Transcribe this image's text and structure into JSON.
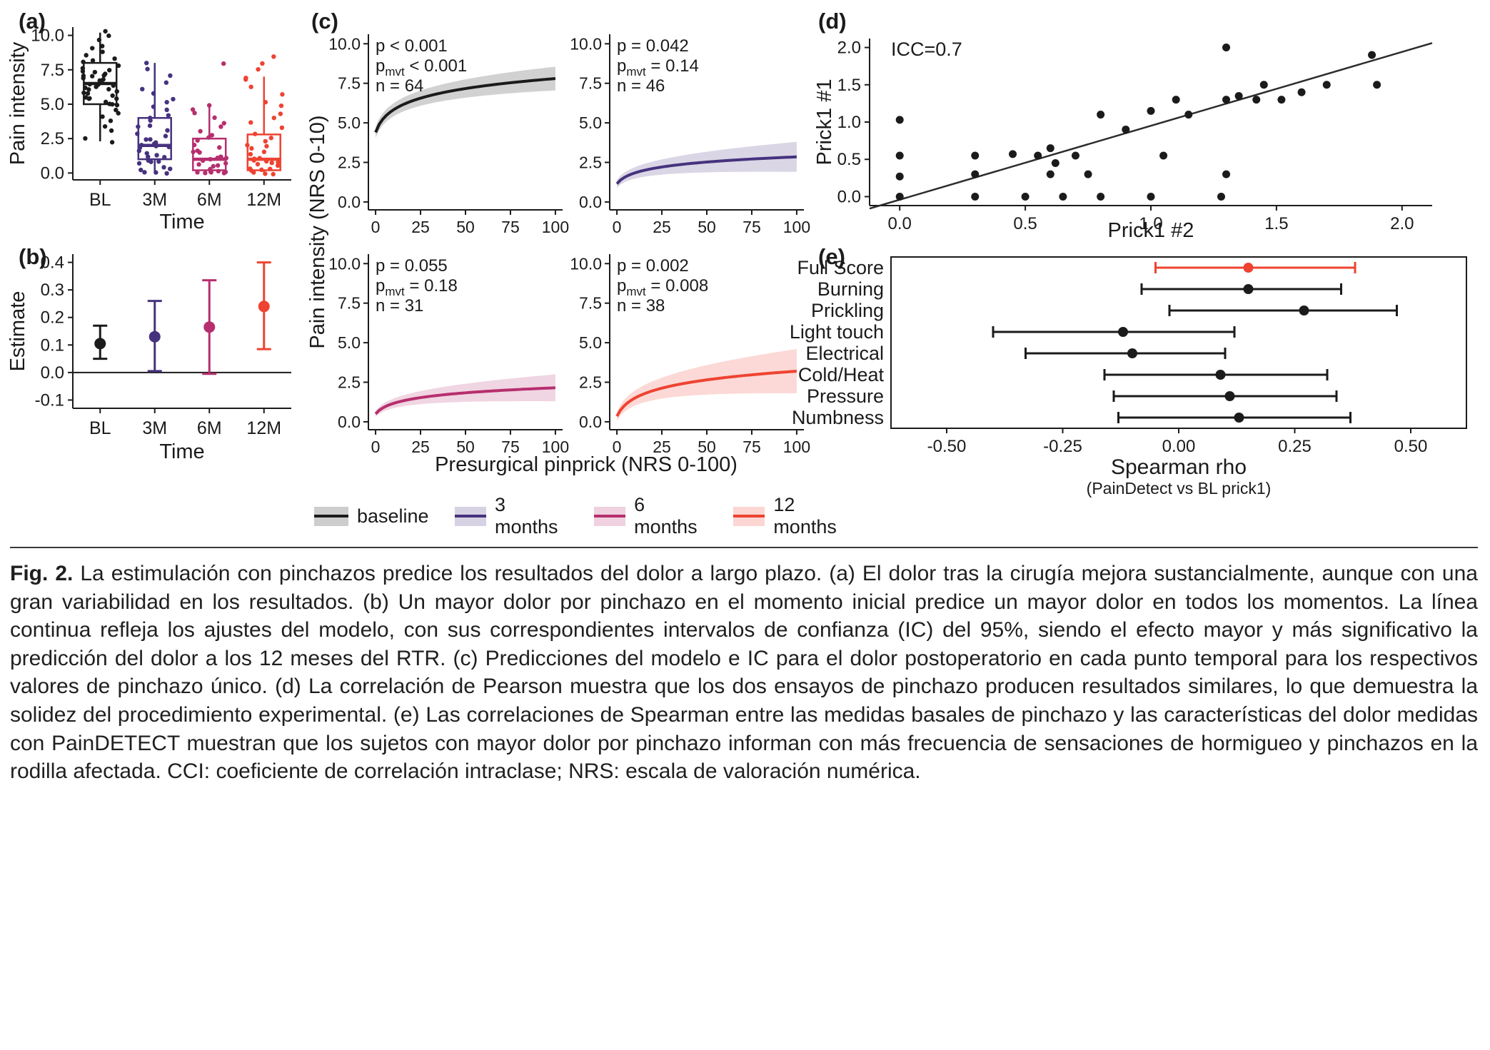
{
  "colors": {
    "baseline": "#1b1b1b",
    "months3": "#46327e",
    "months6": "#b62f6e",
    "months12": "#ee4331"
  },
  "figure": {
    "panel_labels": {
      "a": "(a)",
      "b": "(b)",
      "c": "(c)",
      "d": "(d)",
      "e": "(e)"
    }
  },
  "legend": {
    "items": [
      {
        "label": "baseline",
        "color_key": "baseline"
      },
      {
        "label": "3 months",
        "color_key": "months3"
      },
      {
        "label": "6 months",
        "color_key": "months6"
      },
      {
        "label": "12 months",
        "color_key": "months12"
      }
    ]
  },
  "chart_data": [
    {
      "id": "a",
      "type": "box",
      "panel_label": "(a)",
      "xlabel": "Time",
      "ylabel": "Pain intensity",
      "categories": [
        "BL",
        "3M",
        "6M",
        "12M"
      ],
      "yticks": [
        "0.0",
        "2.5",
        "5.0",
        "7.5",
        "10.0"
      ],
      "ylim": [
        -0.5,
        10.6
      ],
      "series": [
        {
          "name": "BL",
          "color_key": "baseline",
          "whisker_low": 2.3,
          "q1": 5.0,
          "median": 6.5,
          "q3": 8.0,
          "whisker_high": 10.2,
          "points": [
            2.3,
            2.6,
            3.0,
            3.3,
            3.7,
            4.0,
            4.3,
            4.6,
            4.9,
            5.0,
            5.1,
            5.2,
            5.3,
            5.4,
            5.5,
            5.6,
            5.7,
            5.8,
            5.9,
            6.0,
            6.1,
            6.2,
            6.3,
            6.4,
            6.5,
            6.6,
            6.7,
            6.8,
            6.9,
            7.0,
            7.1,
            7.2,
            7.3,
            7.4,
            7.5,
            7.7,
            7.9,
            8.0,
            8.2,
            8.4,
            8.6,
            8.8,
            9.0,
            9.3,
            9.6,
            9.9,
            10.2,
            6.35,
            5.45,
            7.05
          ]
        },
        {
          "name": "3M",
          "color_key": "months3",
          "whisker_low": 0.0,
          "q1": 1.0,
          "median": 2.0,
          "q3": 4.0,
          "whisker_high": 8.0,
          "points": [
            0.0,
            0.0,
            0.1,
            0.2,
            0.3,
            0.5,
            0.6,
            0.8,
            0.9,
            1.0,
            1.1,
            1.2,
            1.3,
            1.5,
            1.6,
            1.8,
            1.9,
            2.0,
            2.0,
            2.1,
            2.2,
            2.4,
            2.5,
            2.7,
            2.9,
            3.1,
            3.3,
            3.5,
            3.8,
            4.0,
            4.2,
            4.5,
            4.8,
            5.1,
            5.4,
            5.8,
            6.2,
            6.6,
            7.0,
            7.5,
            8.0
          ]
        },
        {
          "name": "6M",
          "color_key": "months6",
          "whisker_low": 0.0,
          "q1": 0.2,
          "median": 1.0,
          "q3": 2.5,
          "whisker_high": 5.0,
          "points": [
            0.0,
            0.0,
            0.0,
            0.1,
            0.1,
            0.2,
            0.3,
            0.4,
            0.5,
            0.6,
            0.7,
            0.8,
            0.9,
            1.0,
            1.0,
            1.1,
            1.2,
            1.4,
            1.5,
            1.7,
            1.9,
            2.1,
            2.3,
            2.5,
            2.8,
            3.0,
            3.3,
            3.6,
            4.0,
            4.4,
            4.7,
            5.0,
            8.0
          ]
        },
        {
          "name": "12M",
          "color_key": "months12",
          "whisker_low": 0.0,
          "q1": 0.2,
          "median": 1.0,
          "q3": 2.8,
          "whisker_high": 7.0,
          "points": [
            0.0,
            0.0,
            0.0,
            0.1,
            0.2,
            0.3,
            0.4,
            0.5,
            0.6,
            0.7,
            0.8,
            0.9,
            1.0,
            1.0,
            1.1,
            1.3,
            1.5,
            1.7,
            1.9,
            2.1,
            2.3,
            2.6,
            2.9,
            3.2,
            3.6,
            4.0,
            4.4,
            4.8,
            5.2,
            5.7,
            6.2,
            6.7,
            7.0,
            7.5,
            8.0,
            8.5
          ]
        }
      ]
    },
    {
      "id": "b",
      "type": "errorbar",
      "panel_label": "(b)",
      "xlabel": "Time",
      "ylabel": "Estimate",
      "categories": [
        "BL",
        "3M",
        "6M",
        "12M"
      ],
      "yticks": [
        "-0.1",
        "0.0",
        "0.1",
        "0.2",
        "0.3",
        "0.4"
      ],
      "ylim": [
        -0.13,
        0.43
      ],
      "hline": 0.0,
      "series": [
        {
          "name": "BL",
          "color_key": "baseline",
          "estimate": 0.105,
          "ci_low": 0.05,
          "ci_high": 0.17
        },
        {
          "name": "3M",
          "color_key": "months3",
          "estimate": 0.13,
          "ci_low": 0.005,
          "ci_high": 0.26
        },
        {
          "name": "6M",
          "color_key": "months6",
          "estimate": 0.165,
          "ci_low": -0.005,
          "ci_high": 0.335
        },
        {
          "name": "12M",
          "color_key": "months12",
          "estimate": 0.24,
          "ci_low": 0.085,
          "ci_high": 0.4
        }
      ]
    },
    {
      "id": "c",
      "type": "curves",
      "panel_label": "(c)",
      "xlabel": "Presurgical pinprick (NRS 0-100)",
      "ylabel": "Pain intensity (NRS 0-10)",
      "xticks": [
        "0",
        "25",
        "50",
        "75",
        "100"
      ],
      "yticks": [
        "0.0",
        "2.5",
        "5.0",
        "7.5",
        "10.0"
      ],
      "xlim": [
        -4,
        104
      ],
      "ylim": [
        -0.5,
        10.6
      ],
      "pmvt_sub": "mvt",
      "subplots": [
        {
          "name": "baseline",
          "color_key": "baseline",
          "p": "p < 0.001",
          "pmvt": "< 0.001",
          "n": "n = 64",
          "y0": 4.4,
          "y1": 7.8,
          "k": 0.35,
          "band0": 0.35,
          "band1": 0.75
        },
        {
          "name": "3 months",
          "color_key": "months3",
          "p": "p = 0.042",
          "pmvt": "= 0.14",
          "n": "n = 46",
          "y0": 1.15,
          "y1": 2.85,
          "k": 0.3,
          "band0": 0.25,
          "band1": 0.95
        },
        {
          "name": "6 months",
          "color_key": "months6",
          "p": "p = 0.055",
          "pmvt": "= 0.18",
          "n": "n = 31",
          "y0": 0.5,
          "y1": 2.15,
          "k": 0.3,
          "band0": 0.2,
          "band1": 0.85
        },
        {
          "name": "12 months",
          "color_key": "months12",
          "p": "p = 0.002",
          "pmvt": "= 0.008",
          "n": "n = 38",
          "y0": 0.35,
          "y1": 3.2,
          "k": 0.3,
          "band0": 0.3,
          "band1": 1.4
        }
      ]
    },
    {
      "id": "d",
      "type": "scatter",
      "panel_label": "(d)",
      "xlabel": "Prick1 #2",
      "ylabel": "Prick1 #1",
      "annotation": "ICC=0.7",
      "xticks": [
        "0.0",
        "0.5",
        "1.0",
        "1.5",
        "2.0"
      ],
      "yticks": [
        "0.0",
        "0.5",
        "1.0",
        "1.5",
        "2.0"
      ],
      "xlim": [
        -0.12,
        2.12
      ],
      "ylim": [
        -0.12,
        2.12
      ],
      "line": {
        "x0": -0.12,
        "y0": -0.16,
        "x1": 2.12,
        "y1": 2.06
      },
      "points": [
        [
          0,
          0
        ],
        [
          0,
          0.27
        ],
        [
          0,
          0.55
        ],
        [
          0,
          1.03
        ],
        [
          0.3,
          0
        ],
        [
          0.3,
          0.3
        ],
        [
          0.3,
          0.55
        ],
        [
          0.45,
          0.57
        ],
        [
          0.5,
          0
        ],
        [
          0.55,
          0.55
        ],
        [
          0.6,
          0.3
        ],
        [
          0.6,
          0.65
        ],
        [
          0.62,
          0.45
        ],
        [
          0.65,
          0
        ],
        [
          0.7,
          0.55
        ],
        [
          0.75,
          0.3
        ],
        [
          0.8,
          0
        ],
        [
          0.8,
          1.1
        ],
        [
          0.9,
          0.9
        ],
        [
          1.0,
          0
        ],
        [
          1.0,
          1.15
        ],
        [
          1.05,
          0.55
        ],
        [
          1.1,
          1.3
        ],
        [
          1.15,
          1.1
        ],
        [
          1.28,
          0
        ],
        [
          1.3,
          0.3
        ],
        [
          1.3,
          1.3
        ],
        [
          1.3,
          2.0
        ],
        [
          1.35,
          1.35
        ],
        [
          1.42,
          1.3
        ],
        [
          1.45,
          1.5
        ],
        [
          1.52,
          1.3
        ],
        [
          1.6,
          1.4
        ],
        [
          1.7,
          1.5
        ],
        [
          1.88,
          1.9
        ],
        [
          1.9,
          1.5
        ]
      ]
    },
    {
      "id": "e",
      "type": "forest",
      "panel_label": "(e)",
      "xlabel": "Spearman rho",
      "xlabel_sub": "(PainDetect vs BL prick1)",
      "xticks": [
        "-0.50",
        "-0.25",
        "0.00",
        "0.25",
        "0.50"
      ],
      "xlim": [
        -0.62,
        0.62
      ],
      "rows": [
        {
          "name": "Full Score",
          "color_key": "months12",
          "estimate": 0.15,
          "ci_low": -0.05,
          "ci_high": 0.38
        },
        {
          "name": "Burning",
          "color_key": "baseline",
          "estimate": 0.15,
          "ci_low": -0.08,
          "ci_high": 0.35
        },
        {
          "name": "Prickling",
          "color_key": "baseline",
          "estimate": 0.27,
          "ci_low": -0.02,
          "ci_high": 0.47
        },
        {
          "name": "Light touch",
          "color_key": "baseline",
          "estimate": -0.12,
          "ci_low": -0.4,
          "ci_high": 0.12
        },
        {
          "name": "Electrical",
          "color_key": "baseline",
          "estimate": -0.1,
          "ci_low": -0.33,
          "ci_high": 0.1
        },
        {
          "name": "Cold/Heat",
          "color_key": "baseline",
          "estimate": 0.09,
          "ci_low": -0.16,
          "ci_high": 0.32
        },
        {
          "name": "Pressure",
          "color_key": "baseline",
          "estimate": 0.11,
          "ci_low": -0.14,
          "ci_high": 0.34
        },
        {
          "name": "Numbness",
          "color_key": "baseline",
          "estimate": 0.13,
          "ci_low": -0.13,
          "ci_high": 0.37
        }
      ]
    }
  ],
  "caption": {
    "label": "Fig. 2.",
    "text": "La estimulación con pinchazos predice los resultados del dolor a largo plazo. (a) El dolor tras la cirugía mejora sustancialmente, aunque con una gran variabilidad en los resultados. (b) Un mayor dolor por pinchazo en el momento inicial predice un mayor dolor en todos los momentos. La línea continua refleja los ajustes del modelo, con sus correspondientes intervalos de confianza (IC) del 95%, siendo el efecto mayor y más significativo la predicción del dolor a los 12 meses del RTR. (c) Predicciones del modelo e IC para el dolor postoperatorio en cada punto temporal para los respectivos valores de pinchazo único. (d) La correlación de Pearson muestra que los dos ensayos de pinchazo producen resultados similares, lo que demuestra la solidez del procedimiento experimental. (e) Las correlaciones de Spearman entre las medidas basales de pinchazo y las características del dolor medidas con PainDETECT muestran que los sujetos con mayor dolor por pinchazo informan con más frecuencia de sensaciones de hormigueo y pinchazos en la rodilla afectada. CCI: coeficiente de correlación intraclase; NRS: escala de valoración numérica."
  }
}
